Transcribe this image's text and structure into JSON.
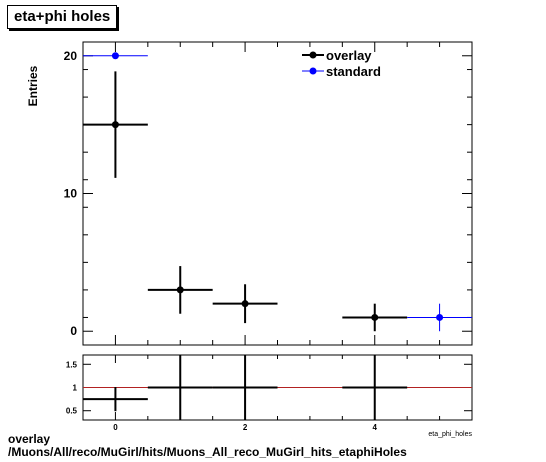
{
  "title": "eta+phi holes",
  "caption": {
    "line1": "overlay",
    "line2": "/Muons/All/reco/MuGirl/hits/Muons_All_reco_MuGirl_hits_etaphiHoles"
  },
  "colors": {
    "overlay": "#000000",
    "standard": "#0000ff",
    "ratio_line": "#b22222"
  },
  "chart_data": [
    {
      "type": "scatter",
      "panel": "main",
      "ylabel": "Entries",
      "xlabel": "eta_phi_holes",
      "xlim": [
        -0.5,
        5.5
      ],
      "ylim": [
        -1,
        21
      ],
      "yticks": [
        0,
        10,
        20
      ],
      "legend": {
        "position": "top-right",
        "entries": [
          "overlay",
          "standard"
        ]
      },
      "series": [
        {
          "name": "overlay",
          "color": "#000000",
          "x": [
            0,
            1,
            2,
            4
          ],
          "y": [
            15,
            3,
            2,
            1
          ],
          "xerr": 0.5,
          "yerr": [
            3.87,
            1.73,
            1.41,
            1.0
          ]
        },
        {
          "name": "standard",
          "color": "#0000ff",
          "x": [
            0,
            5
          ],
          "y": [
            20,
            1
          ],
          "xerr": 0.5,
          "yerr": [
            0,
            1.0
          ]
        }
      ]
    },
    {
      "type": "scatter",
      "panel": "ratio",
      "xlim": [
        -0.5,
        5.5
      ],
      "ylim": [
        0.3,
        1.7
      ],
      "yticks": [
        0.5,
        1,
        1.5
      ],
      "xticks": [
        0,
        2,
        4
      ],
      "reference_line": 1,
      "series": [
        {
          "name": "ratio",
          "color": "#000000",
          "x": [
            0,
            1,
            2,
            4
          ],
          "y": [
            0.75,
            1,
            1,
            1
          ],
          "xerr": 0.5,
          "yerr": [
            0.26,
            0.8,
            0.8,
            0.8
          ]
        }
      ]
    }
  ]
}
